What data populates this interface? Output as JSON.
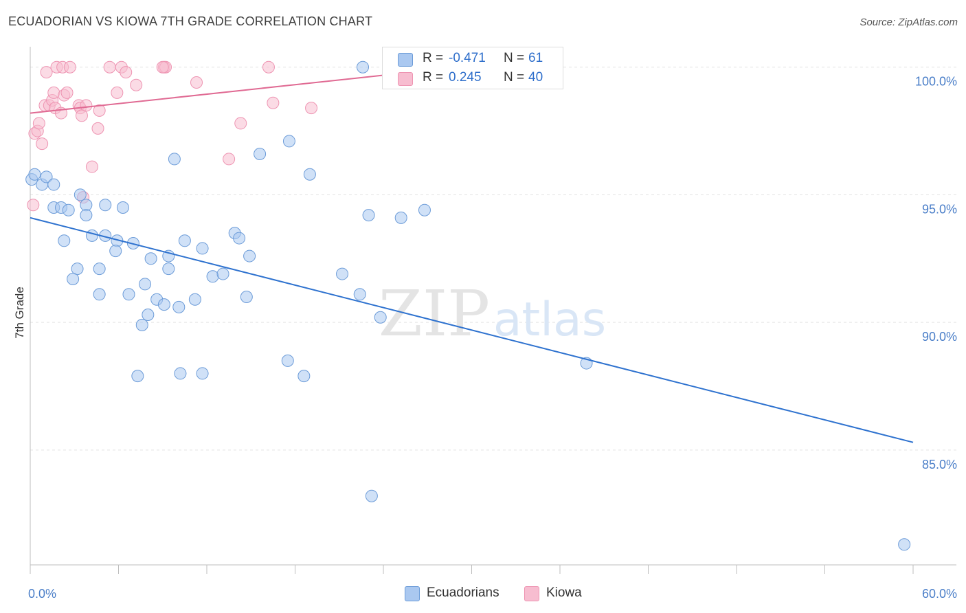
{
  "title": "ECUADORIAN VS KIOWA 7TH GRADE CORRELATION CHART",
  "source": "Source: ZipAtlas.com",
  "watermark": {
    "zip": "ZIP",
    "atlas": "atlas"
  },
  "legend": {
    "rows": [
      {
        "r_label": "R =",
        "r_value": "-0.471",
        "n_label": "N =",
        "n_value": "61"
      },
      {
        "r_label": "R =",
        "r_value": "0.245",
        "n_label": "N =",
        "n_value": "40"
      }
    ]
  },
  "bottom_legend": {
    "items": [
      "Ecuadorians",
      "Kiowa"
    ]
  },
  "colors": {
    "ecuadorians_fill": "#aac8f0",
    "ecuadorians_stroke": "#6b9bd8",
    "ecuadorians_line": "#2e72cf",
    "kiowa_fill": "#f7bdd0",
    "kiowa_stroke": "#ee94b2",
    "kiowa_line": "#e06a93",
    "tick_label": "#4a7ec8",
    "grid": "#e3e3e3"
  },
  "chart_data": {
    "type": "scatter",
    "ylabel": "7th Grade",
    "xlim": [
      0,
      60
    ],
    "ylim": [
      80.5,
      100.8
    ],
    "x_tick_labels": [
      {
        "x": 0,
        "label": "0.0%"
      },
      {
        "x": 60,
        "label": "60.0%"
      }
    ],
    "y_tick_labels": [
      {
        "y": 100,
        "label": "100.0%"
      },
      {
        "y": 95,
        "label": "95.0%"
      },
      {
        "y": 90,
        "label": "90.0%"
      },
      {
        "y": 85,
        "label": "85.0%"
      }
    ],
    "x_minor_ticks": [
      0,
      6,
      12,
      18,
      24,
      30,
      36,
      42,
      48,
      54,
      60
    ],
    "grid": true,
    "series": [
      {
        "name": "Ecuadorians",
        "trend": {
          "x0": 0,
          "y0": 94.1,
          "x1": 60,
          "y1": 85.3
        },
        "points": [
          [
            0.1,
            95.6
          ],
          [
            0.3,
            95.8
          ],
          [
            0.8,
            95.4
          ],
          [
            1.1,
            95.7
          ],
          [
            1.6,
            95.4
          ],
          [
            1.6,
            94.5
          ],
          [
            2.1,
            94.5
          ],
          [
            2.6,
            94.4
          ],
          [
            2.3,
            93.2
          ],
          [
            3.4,
            95.0
          ],
          [
            3.8,
            94.6
          ],
          [
            3.8,
            94.2
          ],
          [
            4.2,
            93.4
          ],
          [
            5.1,
            94.6
          ],
          [
            5.1,
            93.4
          ],
          [
            6.3,
            94.5
          ],
          [
            5.9,
            93.2
          ],
          [
            3.2,
            92.1
          ],
          [
            2.9,
            91.7
          ],
          [
            4.7,
            92.1
          ],
          [
            5.8,
            92.8
          ],
          [
            7.0,
            93.1
          ],
          [
            4.7,
            91.1
          ],
          [
            6.7,
            91.1
          ],
          [
            7.8,
            91.5
          ],
          [
            8.2,
            92.5
          ],
          [
            9.4,
            92.6
          ],
          [
            9.4,
            92.1
          ],
          [
            10.5,
            93.2
          ],
          [
            11.7,
            92.9
          ],
          [
            8.6,
            90.9
          ],
          [
            9.1,
            90.7
          ],
          [
            10.1,
            90.6
          ],
          [
            11.2,
            90.9
          ],
          [
            8.0,
            90.3
          ],
          [
            7.6,
            89.9
          ],
          [
            7.3,
            87.9
          ],
          [
            10.2,
            88.0
          ],
          [
            11.7,
            88.0
          ],
          [
            12.4,
            91.8
          ],
          [
            13.1,
            91.9
          ],
          [
            13.9,
            93.5
          ],
          [
            14.2,
            93.3
          ],
          [
            14.9,
            92.6
          ],
          [
            14.7,
            91.0
          ],
          [
            9.8,
            96.4
          ],
          [
            15.6,
            96.6
          ],
          [
            17.6,
            97.1
          ],
          [
            19.0,
            95.8
          ],
          [
            17.5,
            88.5
          ],
          [
            18.6,
            87.9
          ],
          [
            21.2,
            91.9
          ],
          [
            22.4,
            91.1
          ],
          [
            23.0,
            94.2
          ],
          [
            23.8,
            90.2
          ],
          [
            25.2,
            94.1
          ],
          [
            26.8,
            94.4
          ],
          [
            22.6,
            100.0
          ],
          [
            37.8,
            88.4
          ],
          [
            23.2,
            83.2
          ],
          [
            59.4,
            81.3
          ]
        ]
      },
      {
        "name": "Kiowa",
        "trend": {
          "x0": 0,
          "y0": 98.2,
          "x1": 27.5,
          "y1": 99.9
        },
        "points": [
          [
            0.2,
            94.6
          ],
          [
            0.3,
            97.4
          ],
          [
            0.5,
            97.5
          ],
          [
            0.6,
            97.8
          ],
          [
            0.8,
            97.0
          ],
          [
            1.0,
            98.5
          ],
          [
            1.1,
            99.8
          ],
          [
            1.3,
            98.5
          ],
          [
            1.5,
            98.7
          ],
          [
            1.7,
            98.4
          ],
          [
            1.6,
            99.0
          ],
          [
            1.8,
            100.0
          ],
          [
            2.1,
            98.2
          ],
          [
            2.2,
            100.0
          ],
          [
            2.3,
            98.9
          ],
          [
            2.5,
            99.0
          ],
          [
            2.7,
            100.0
          ],
          [
            3.3,
            98.5
          ],
          [
            3.4,
            98.4
          ],
          [
            3.5,
            98.1
          ],
          [
            3.8,
            98.5
          ],
          [
            3.6,
            94.9
          ],
          [
            4.2,
            96.1
          ],
          [
            4.6,
            97.6
          ],
          [
            4.7,
            98.3
          ],
          [
            5.4,
            100.0
          ],
          [
            5.9,
            99.0
          ],
          [
            6.2,
            100.0
          ],
          [
            6.5,
            99.8
          ],
          [
            7.2,
            99.3
          ],
          [
            9.1,
            100.0
          ],
          [
            9.2,
            100.0
          ],
          [
            11.3,
            99.4
          ],
          [
            13.5,
            96.4
          ],
          [
            14.3,
            97.8
          ],
          [
            16.2,
            100.0
          ],
          [
            16.5,
            98.6
          ],
          [
            19.1,
            98.4
          ],
          [
            27.2,
            99.8
          ],
          [
            9.0,
            100.0
          ]
        ]
      }
    ]
  }
}
